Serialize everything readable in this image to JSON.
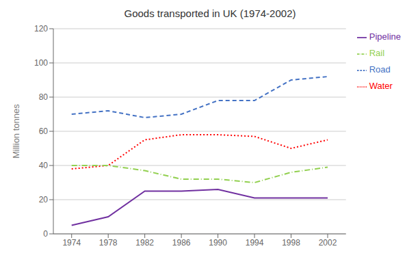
{
  "chart_data": {
    "type": "line",
    "title": "Goods transported in UK (1974-2002)",
    "ylabel": "Million tonnes",
    "x": [
      1974,
      1978,
      1982,
      1986,
      1990,
      1994,
      1998,
      2002
    ],
    "series": [
      {
        "name": "Road",
        "color": "#4472C4",
        "line_style": "dashed",
        "values": [
          70,
          72,
          68,
          70,
          78,
          78,
          90,
          92
        ]
      },
      {
        "name": "Water",
        "color": "#FF0000",
        "line_style": "dotted",
        "values": [
          38,
          40,
          55,
          58,
          58,
          57,
          50,
          55
        ]
      },
      {
        "name": "Rail",
        "color": "#92D050",
        "line_style": "dashdot",
        "values": [
          40,
          40,
          37,
          32,
          32,
          30,
          36,
          39
        ]
      },
      {
        "name": "Pipeline",
        "color": "#7030A0",
        "line_style": "solid",
        "values": [
          5,
          10,
          25,
          25,
          26,
          21,
          21,
          21
        ]
      }
    ],
    "xlim": [
      1972,
      2004
    ],
    "xticks": [
      1974,
      1978,
      1982,
      1986,
      1990,
      1994,
      1998,
      2002
    ],
    "ylim": [
      0,
      120
    ],
    "yticks": [
      0,
      20,
      40,
      60,
      80,
      100,
      120
    ],
    "grid": true,
    "legend": "right"
  }
}
